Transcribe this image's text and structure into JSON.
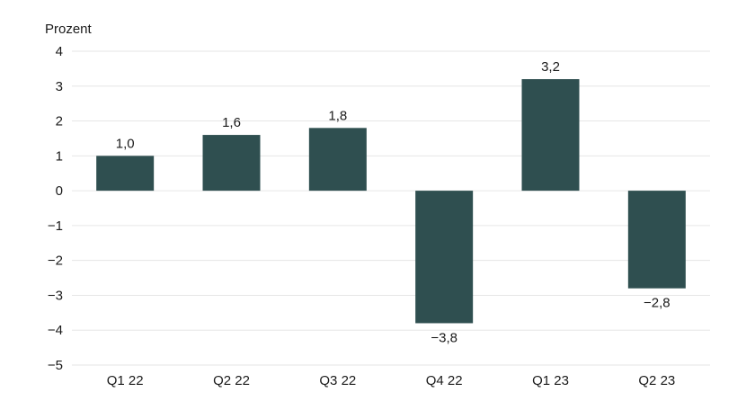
{
  "chart_data": {
    "type": "bar",
    "unit_label": "Prozent",
    "categories": [
      "Q1 22",
      "Q2 22",
      "Q3 22",
      "Q4 22",
      "Q1 23",
      "Q2 23"
    ],
    "values": [
      1.0,
      1.6,
      1.8,
      -3.8,
      3.2,
      -2.8
    ],
    "value_labels": [
      "1,0",
      "1,6",
      "1,8",
      "−3,8",
      "3,2",
      "−2,8"
    ],
    "y_ticks": [
      4,
      3,
      2,
      1,
      0,
      -1,
      -2,
      -3,
      -4,
      -5
    ],
    "y_tick_labels": [
      "4",
      "3",
      "2",
      "1",
      "0",
      "−1",
      "−2",
      "−3",
      "−4",
      "−5"
    ],
    "ylim": [
      -5,
      4
    ],
    "grid": true,
    "bar_color": "#2f4f50",
    "grid_color": "#e6e6e6"
  }
}
